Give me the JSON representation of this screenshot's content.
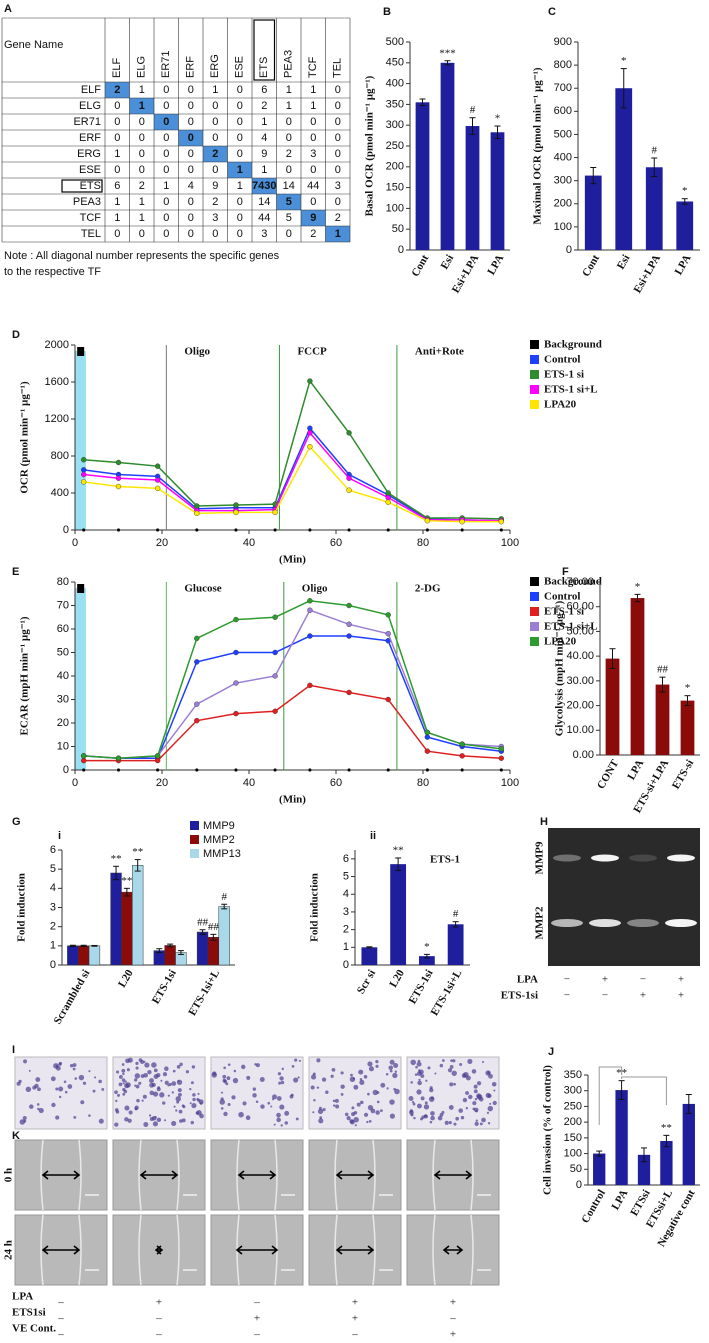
{
  "table": {
    "panel": "A",
    "header": [
      "Gene Name",
      "ELF",
      "ELG",
      "ER71",
      "ERF",
      "ERG",
      "ESE",
      "ETS",
      "PEA3",
      "TCF",
      "TEL"
    ],
    "rows": [
      [
        "ELF",
        2,
        1,
        0,
        0,
        1,
        0,
        6,
        1,
        1,
        0
      ],
      [
        "ELG",
        0,
        1,
        0,
        0,
        0,
        0,
        2,
        1,
        1,
        0
      ],
      [
        "ER71",
        0,
        0,
        0,
        0,
        0,
        0,
        1,
        0,
        0,
        0
      ],
      [
        "ERF",
        0,
        0,
        0,
        0,
        0,
        0,
        4,
        0,
        0,
        0
      ],
      [
        "ERG",
        1,
        0,
        0,
        0,
        2,
        0,
        9,
        2,
        3,
        0
      ],
      [
        "ESE",
        0,
        0,
        0,
        0,
        0,
        1,
        1,
        0,
        0,
        0
      ],
      [
        "ETS",
        6,
        2,
        1,
        4,
        9,
        1,
        7430,
        14,
        44,
        3
      ],
      [
        "PEA3",
        1,
        1,
        0,
        0,
        2,
        0,
        14,
        5,
        0,
        0
      ],
      [
        "TCF",
        1,
        1,
        0,
        0,
        3,
        0,
        44,
        5,
        9,
        2
      ],
      [
        "TEL",
        0,
        0,
        0,
        0,
        0,
        0,
        3,
        0,
        2,
        1
      ]
    ],
    "note": [
      "Note : All diagonal number represents the specific genes",
      "to the respective TF"
    ]
  },
  "chart_data": [
    {
      "type": "bar",
      "panel": "B",
      "ylabel": "Basal OCR (pmol min⁻¹ µg⁻¹)",
      "categories": [
        "Cont",
        "Esi",
        "Esi+LPA",
        "LPA"
      ],
      "values": [
        355,
        450,
        298,
        283
      ],
      "errors": [
        8,
        5,
        20,
        15
      ],
      "annotations": [
        null,
        "***",
        "#",
        "*"
      ],
      "color": "#1f1f9e",
      "ylim": [
        0,
        500
      ],
      "yticks": [
        0,
        50,
        100,
        150,
        200,
        250,
        300,
        350,
        400,
        450,
        500
      ]
    },
    {
      "type": "bar",
      "panel": "C",
      "ylabel": "Maximal OCR (pmol min⁻¹ µg⁻¹)",
      "categories": [
        "Cont",
        "Esi",
        "Esi+LPA",
        "LPA"
      ],
      "values": [
        322,
        700,
        358,
        210
      ],
      "errors": [
        35,
        85,
        40,
        12
      ],
      "annotations": [
        null,
        "*",
        "#",
        "*"
      ],
      "color": "#1f1f9e",
      "ylim": [
        0,
        900
      ],
      "yticks": [
        0,
        100,
        200,
        300,
        400,
        500,
        600,
        700,
        800,
        900
      ]
    },
    {
      "type": "line",
      "panel": "D",
      "ylabel": "OCR (pmol min⁻¹ µg⁻¹)",
      "xlabel": "(Min)",
      "x": [
        2,
        10,
        19,
        28,
        37,
        46,
        54,
        63,
        72,
        81,
        89,
        98
      ],
      "xlim": [
        0,
        100
      ],
      "xticks": [
        0,
        20,
        40,
        60,
        80,
        100
      ],
      "ylim": [
        0,
        2000
      ],
      "yticks": [
        0,
        400,
        800,
        1200,
        1600,
        2000
      ],
      "events": [
        {
          "label": "Oligo",
          "x": 21,
          "color": "#777777"
        },
        {
          "label": "FCCP",
          "x": 47,
          "color": "#3a9a3a"
        },
        {
          "label": "Anti+Rote",
          "x": 74,
          "color": "#3a9a3a"
        }
      ],
      "series": [
        {
          "name": "Background",
          "color": "#000000",
          "values": [
            0,
            0,
            0,
            0,
            0,
            0,
            0,
            0,
            0,
            0,
            0,
            0
          ]
        },
        {
          "name": "Control",
          "color": "#1f3fff",
          "values": [
            650,
            600,
            580,
            230,
            240,
            240,
            1100,
            600,
            380,
            120,
            110,
            100
          ]
        },
        {
          "name": "ETS-1 si",
          "color": "#2e8b2e",
          "values": [
            760,
            730,
            690,
            260,
            270,
            280,
            1610,
            1050,
            400,
            130,
            130,
            120
          ]
        },
        {
          "name": "ETS-1 si+L",
          "color": "#ff00ff",
          "values": [
            600,
            560,
            540,
            210,
            210,
            220,
            1050,
            560,
            350,
            110,
            110,
            100
          ]
        },
        {
          "name": "LPA20",
          "color": "#ffe600",
          "values": [
            520,
            470,
            450,
            180,
            190,
            190,
            900,
            430,
            300,
            100,
            90,
            90
          ]
        }
      ]
    },
    {
      "type": "line",
      "panel": "E",
      "ylabel": "ECAR (mpH min⁻¹ µg⁻¹)",
      "xlabel": "(Min)",
      "x": [
        2,
        10,
        19,
        28,
        37,
        46,
        54,
        63,
        72,
        81,
        89,
        98
      ],
      "xlim": [
        0,
        100
      ],
      "xticks": [
        0,
        20,
        40,
        60,
        80,
        100
      ],
      "ylim": [
        0,
        80
      ],
      "yticks": [
        0,
        10,
        20,
        30,
        40,
        50,
        60,
        70,
        80
      ],
      "events": [
        {
          "label": "Glucose",
          "x": 21,
          "color": "#5cb85c"
        },
        {
          "label": "Oligo",
          "x": 48,
          "color": "#3a9a3a"
        },
        {
          "label": "2-DG",
          "x": 74,
          "color": "#3a9a3a"
        }
      ],
      "series": [
        {
          "name": "Background",
          "color": "#000000",
          "values": [
            0,
            0,
            0,
            0,
            0,
            0,
            0,
            0,
            0,
            0,
            0,
            0
          ]
        },
        {
          "name": "Control",
          "color": "#1f3fff",
          "values": [
            6,
            5,
            5,
            46,
            50,
            50,
            57,
            57,
            55,
            14,
            10,
            8
          ]
        },
        {
          "name": "ETS-1 si",
          "color": "#e02020",
          "values": [
            4,
            4,
            4,
            21,
            24,
            25,
            36,
            33,
            30,
            8,
            6,
            5
          ]
        },
        {
          "name": "ETS-1 si+L",
          "color": "#9b7fd4",
          "values": [
            6,
            5,
            6,
            28,
            37,
            40,
            68,
            62,
            58,
            16,
            11,
            10
          ]
        },
        {
          "name": "LPA20",
          "color": "#2e9b2e",
          "values": [
            6,
            5,
            6,
            56,
            64,
            65,
            72,
            70,
            66,
            16,
            11,
            9
          ]
        }
      ]
    },
    {
      "type": "bar",
      "panel": "F",
      "ylabel": "Glycolysis (mpH min⁻¹ µg⁻¹)",
      "categories": [
        "CONT",
        "LPA",
        "ETS-si+LPA",
        "ETS-si"
      ],
      "values": [
        39,
        63.5,
        28.5,
        22
      ],
      "errors": [
        4,
        1.5,
        3,
        2
      ],
      "annotations": [
        null,
        "*",
        "##",
        "*"
      ],
      "color": "#8b0a0a",
      "ylim": [
        0,
        70
      ],
      "yticks": [
        {
          "value": 0,
          "label": "0.00"
        },
        {
          "value": 10,
          "label": "10.00"
        },
        {
          "value": 20,
          "label": "20.00"
        },
        {
          "value": 30,
          "label": "30.00"
        },
        {
          "value": 40,
          "label": "40.00"
        },
        {
          "value": 50,
          "label": "50.00"
        },
        {
          "value": 60,
          "label": "60.00"
        },
        {
          "value": 70,
          "label": "70.00"
        }
      ]
    },
    {
      "type": "bar",
      "panel": "G",
      "sublabel": "i",
      "ylabel": "Fold induction",
      "categories": [
        "Scrambled si",
        "L20",
        "ETS-1si",
        "ETS-1si+L"
      ],
      "ylim": [
        0,
        6
      ],
      "yticks": [
        0,
        1,
        2,
        3,
        4,
        5,
        6
      ],
      "series": [
        {
          "name": "MMP9",
          "color": "#1f1f9e",
          "values": [
            1,
            4.8,
            0.75,
            1.72
          ],
          "errors": [
            0.03,
            0.35,
            0.1,
            0.12
          ],
          "annotations": [
            null,
            "**",
            null,
            "##"
          ]
        },
        {
          "name": "MMP2",
          "color": "#8b0a0a",
          "values": [
            1,
            3.8,
            1.02,
            1.45
          ],
          "errors": [
            0.03,
            0.2,
            0.07,
            0.15
          ],
          "annotations": [
            null,
            "**",
            null,
            "##"
          ]
        },
        {
          "name": "MMP13",
          "color": "#a8d8ea",
          "values": [
            1,
            5.2,
            0.65,
            3.05
          ],
          "errors": [
            0.02,
            0.3,
            0.1,
            0.12
          ],
          "annotations": [
            null,
            "**",
            null,
            "#"
          ]
        }
      ]
    },
    {
      "type": "bar",
      "sublabel": "ii",
      "title": "ETS-1",
      "ylabel": "Fold induction",
      "categories": [
        "Scr si",
        "L20",
        "ETS-1si",
        "ETS-1si+L"
      ],
      "values": [
        1,
        5.7,
        0.5,
        2.3
      ],
      "errors": [
        0.03,
        0.35,
        0.1,
        0.15
      ],
      "annotations": [
        null,
        "**",
        "*",
        "#"
      ],
      "color": "#1f1f9e",
      "ylim": [
        0,
        6.5
      ],
      "yticks": [
        0,
        1,
        2,
        3,
        4,
        5,
        6
      ]
    },
    {
      "type": "bar",
      "panel": "J",
      "ylabel": "Cell invasion (% of control)",
      "categories": [
        "Control",
        "LPA",
        "ETSsi",
        "ETSsi+L",
        "Negative cont"
      ],
      "values": [
        100,
        302,
        96,
        140,
        258
      ],
      "errors": [
        8,
        30,
        22,
        18,
        30
      ],
      "annotations": [
        null,
        "**",
        null,
        "**",
        null
      ],
      "color": "#1f1f9e",
      "ylim": [
        0,
        350
      ],
      "yticks": [
        0,
        50,
        100,
        150,
        200,
        250,
        300,
        350
      ]
    }
  ],
  "gel": {
    "panel": "H",
    "bands": [
      "MMP9",
      "MMP2"
    ],
    "rows": [
      {
        "label": "LPA",
        "signs": [
          "−",
          "+",
          "−",
          "+"
        ]
      },
      {
        "label": "ETS-1si",
        "signs": [
          "−",
          "−",
          "+",
          "+"
        ]
      }
    ]
  },
  "invasion_images": {
    "panel": "I"
  },
  "wound": {
    "panel": "K",
    "times": [
      "0 h",
      "24 h"
    ],
    "rows": [
      {
        "label": "LPA",
        "signs": [
          "–",
          "+",
          "–",
          "+",
          "+"
        ]
      },
      {
        "label": "ETS1si",
        "signs": [
          "–",
          "–",
          "+",
          "+",
          "–"
        ]
      },
      {
        "label": "VE Cont.",
        "signs": [
          "–",
          "–",
          "–",
          "–",
          "+"
        ]
      }
    ]
  }
}
